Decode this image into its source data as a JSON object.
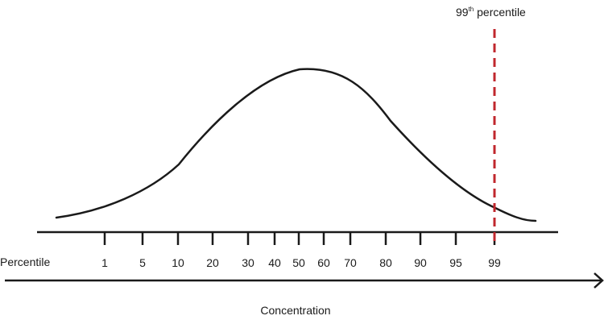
{
  "diagram": {
    "marker": {
      "label_prefix": "99",
      "label_sup": "th",
      "label_suffix": " percentile",
      "at_percentile": 99,
      "color": "#c0272d"
    },
    "percentile_axis": {
      "label": "Percentile",
      "ticks": [
        "1",
        "5",
        "10",
        "20",
        "30",
        "40",
        "50",
        "60",
        "70",
        "80",
        "90",
        "95",
        "99"
      ]
    },
    "concentration_axis": {
      "label": "Concentration"
    }
  }
}
